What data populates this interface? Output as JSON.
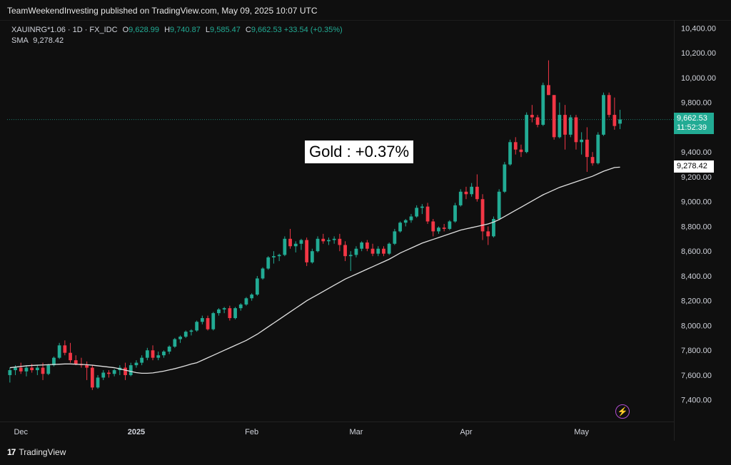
{
  "header": {
    "publisher_line": "TeamWeekendInvesting published on TradingView.com, May 09, 2025 10:07 UTC"
  },
  "legend": {
    "symbol": "XAUINRG*1.06 · 1D · FX_IDC",
    "open_label": "O",
    "open": "9,628.99",
    "high_label": "H",
    "high": "9,740.87",
    "low_label": "L",
    "low": "9,585.47",
    "close_label": "C",
    "close": "9,662.53",
    "change": "+33.54 (+0.35%)",
    "sma_label": "SMA",
    "sma_value": "9,278.42"
  },
  "annotation": {
    "text": "Gold : +0.37%"
  },
  "price_tag": {
    "price": "9,662.53",
    "countdown": "11:52:39"
  },
  "sma_tag": {
    "value": "9,278.42"
  },
  "footer": {
    "brand": "TradingView",
    "logo": "17"
  },
  "colors": {
    "up": "#22ab94",
    "down": "#f23645",
    "sma": "#e0e0e0",
    "price_line": "#22ab94"
  },
  "icons": {
    "bolt": "lightning-icon"
  },
  "chart_data": {
    "type": "candlestick",
    "y_ticks": [
      "7,400.00",
      "7,600.00",
      "7,800.00",
      "8,000.00",
      "8,200.00",
      "8,400.00",
      "8,600.00",
      "8,800.00",
      "9,000.00",
      "9,200.00",
      "9,400.00",
      "9,600.00",
      "9,800.00",
      "10,000.00",
      "10,200.00",
      "10,400.00"
    ],
    "ylim": [
      7220,
      10460
    ],
    "x_ticks": [
      {
        "label": "Dec",
        "index": 2
      },
      {
        "label": "2025",
        "index": 23
      },
      {
        "label": "Feb",
        "index": 44
      },
      {
        "label": "Mar",
        "index": 63
      },
      {
        "label": "Apr",
        "index": 83
      },
      {
        "label": "May",
        "index": 104
      }
    ],
    "x_count": 120,
    "current_price": 9662.53,
    "candles": [
      [
        7600,
        7660,
        7540,
        7640
      ],
      [
        7640,
        7680,
        7600,
        7660
      ],
      [
        7660,
        7700,
        7610,
        7630
      ],
      [
        7630,
        7680,
        7590,
        7660
      ],
      [
        7660,
        7690,
        7620,
        7640
      ],
      [
        7640,
        7680,
        7600,
        7660
      ],
      [
        7660,
        7700,
        7560,
        7610
      ],
      [
        7610,
        7690,
        7600,
        7680
      ],
      [
        7680,
        7750,
        7670,
        7740
      ],
      [
        7740,
        7860,
        7730,
        7840
      ],
      [
        7840,
        7880,
        7760,
        7780
      ],
      [
        7780,
        7860,
        7700,
        7720
      ],
      [
        7720,
        7760,
        7680,
        7690
      ],
      [
        7690,
        7740,
        7660,
        7680
      ],
      [
        7680,
        7710,
        7560,
        7660
      ],
      [
        7660,
        7680,
        7480,
        7500
      ],
      [
        7500,
        7600,
        7490,
        7580
      ],
      [
        7580,
        7640,
        7560,
        7620
      ],
      [
        7620,
        7640,
        7580,
        7610
      ],
      [
        7610,
        7650,
        7590,
        7640
      ],
      [
        7640,
        7680,
        7600,
        7660
      ],
      [
        7660,
        7700,
        7560,
        7600
      ],
      [
        7600,
        7700,
        7590,
        7680
      ],
      [
        7680,
        7720,
        7660,
        7700
      ],
      [
        7700,
        7760,
        7680,
        7740
      ],
      [
        7740,
        7820,
        7720,
        7800
      ],
      [
        7800,
        7840,
        7720,
        7740
      ],
      [
        7740,
        7790,
        7720,
        7760
      ],
      [
        7760,
        7800,
        7740,
        7790
      ],
      [
        7790,
        7840,
        7770,
        7830
      ],
      [
        7830,
        7900,
        7820,
        7890
      ],
      [
        7890,
        7920,
        7860,
        7910
      ],
      [
        7910,
        7960,
        7900,
        7950
      ],
      [
        7950,
        7970,
        7920,
        7960
      ],
      [
        7960,
        8040,
        7950,
        8030
      ],
      [
        8030,
        8080,
        8010,
        8060
      ],
      [
        8060,
        8080,
        7960,
        7970
      ],
      [
        7970,
        8110,
        7960,
        8100
      ],
      [
        8100,
        8140,
        8080,
        8130
      ],
      [
        8130,
        8150,
        8100,
        8140
      ],
      [
        8140,
        8160,
        8040,
        8060
      ],
      [
        8060,
        8150,
        8050,
        8140
      ],
      [
        8140,
        8180,
        8120,
        8170
      ],
      [
        8170,
        8230,
        8160,
        8220
      ],
      [
        8220,
        8260,
        8200,
        8250
      ],
      [
        8250,
        8400,
        8240,
        8380
      ],
      [
        8380,
        8470,
        8370,
        8460
      ],
      [
        8460,
        8560,
        8450,
        8550
      ],
      [
        8550,
        8600,
        8500,
        8560
      ],
      [
        8560,
        8580,
        8520,
        8570
      ],
      [
        8570,
        8720,
        8560,
        8700
      ],
      [
        8700,
        8780,
        8620,
        8640
      ],
      [
        8640,
        8680,
        8590,
        8660
      ],
      [
        8660,
        8700,
        8610,
        8690
      ],
      [
        8690,
        8710,
        8480,
        8510
      ],
      [
        8510,
        8620,
        8500,
        8600
      ],
      [
        8600,
        8720,
        8590,
        8700
      ],
      [
        8700,
        8740,
        8660,
        8680
      ],
      [
        8680,
        8710,
        8650,
        8690
      ],
      [
        8690,
        8720,
        8660,
        8700
      ],
      [
        8700,
        8740,
        8600,
        8650
      ],
      [
        8650,
        8680,
        8520,
        8560
      ],
      [
        8560,
        8600,
        8440,
        8570
      ],
      [
        8570,
        8640,
        8550,
        8620
      ],
      [
        8620,
        8680,
        8600,
        8670
      ],
      [
        8670,
        8690,
        8600,
        8620
      ],
      [
        8620,
        8660,
        8560,
        8580
      ],
      [
        8580,
        8640,
        8560,
        8620
      ],
      [
        8620,
        8640,
        8560,
        8580
      ],
      [
        8580,
        8670,
        8570,
        8660
      ],
      [
        8660,
        8780,
        8650,
        8760
      ],
      [
        8760,
        8840,
        8750,
        8830
      ],
      [
        8830,
        8860,
        8800,
        8850
      ],
      [
        8850,
        8900,
        8830,
        8880
      ],
      [
        8880,
        8970,
        8870,
        8950
      ],
      [
        8950,
        8980,
        8900,
        8960
      ],
      [
        8960,
        8990,
        8820,
        8840
      ],
      [
        8840,
        8860,
        8720,
        8760
      ],
      [
        8760,
        8800,
        8740,
        8790
      ],
      [
        8790,
        8820,
        8760,
        8780
      ],
      [
        8780,
        8850,
        8770,
        8840
      ],
      [
        8840,
        8990,
        8830,
        8970
      ],
      [
        8970,
        9100,
        8960,
        9080
      ],
      [
        9080,
        9120,
        9020,
        9060
      ],
      [
        9060,
        9150,
        9040,
        9120
      ],
      [
        9120,
        9220,
        9000,
        9020
      ],
      [
        9020,
        9060,
        8690,
        8760
      ],
      [
        8760,
        8800,
        8650,
        8720
      ],
      [
        8720,
        8880,
        8710,
        8860
      ],
      [
        8860,
        9100,
        8850,
        9080
      ],
      [
        9080,
        9320,
        9070,
        9300
      ],
      [
        9300,
        9500,
        9290,
        9480
      ],
      [
        9480,
        9520,
        9380,
        9420
      ],
      [
        9420,
        9460,
        9360,
        9400
      ],
      [
        9400,
        9720,
        9390,
        9700
      ],
      [
        9700,
        9780,
        9640,
        9680
      ],
      [
        9680,
        9700,
        9600,
        9620
      ],
      [
        9620,
        9960,
        9610,
        9940
      ],
      [
        9940,
        10140,
        9860,
        9860
      ],
      [
        9860,
        9860,
        9500,
        9520
      ],
      [
        9520,
        9800,
        9510,
        9700
      ],
      [
        9700,
        9780,
        9420,
        9540
      ],
      [
        9540,
        9700,
        9520,
        9680
      ],
      [
        9680,
        9700,
        9420,
        9480
      ],
      [
        9480,
        9560,
        9380,
        9500
      ],
      [
        9500,
        9600,
        9240,
        9360
      ],
      [
        9360,
        9400,
        9290,
        9310
      ],
      [
        9310,
        9560,
        9300,
        9540
      ],
      [
        9540,
        9880,
        9530,
        9860
      ],
      [
        9860,
        9880,
        9680,
        9700
      ],
      [
        9700,
        9840,
        9580,
        9610
      ],
      [
        9629,
        9741,
        9585,
        9663
      ]
    ],
    "sma": [
      7660,
      7665,
      7670,
      7675,
      7678,
      7680,
      7682,
      7684,
      7686,
      7688,
      7690,
      7690,
      7688,
      7686,
      7684,
      7680,
      7675,
      7670,
      7665,
      7660,
      7650,
      7640,
      7630,
      7620,
      7615,
      7615,
      7618,
      7625,
      7632,
      7642,
      7652,
      7664,
      7676,
      7690,
      7700,
      7720,
      7740,
      7760,
      7780,
      7800,
      7820,
      7840,
      7860,
      7880,
      7905,
      7930,
      7960,
      7990,
      8020,
      8050,
      8080,
      8110,
      8140,
      8170,
      8200,
      8225,
      8250,
      8275,
      8300,
      8325,
      8350,
      8375,
      8395,
      8415,
      8435,
      8455,
      8475,
      8495,
      8515,
      8535,
      8560,
      8585,
      8605,
      8625,
      8645,
      8665,
      8680,
      8695,
      8710,
      8725,
      8740,
      8755,
      8770,
      8780,
      8790,
      8800,
      8810,
      8820,
      8835,
      8855,
      8880,
      8905,
      8930,
      8955,
      8980,
      9005,
      9030,
      9055,
      9075,
      9095,
      9115,
      9130,
      9145,
      9160,
      9175,
      9190,
      9205,
      9225,
      9245,
      9260,
      9275,
      9278
    ]
  }
}
